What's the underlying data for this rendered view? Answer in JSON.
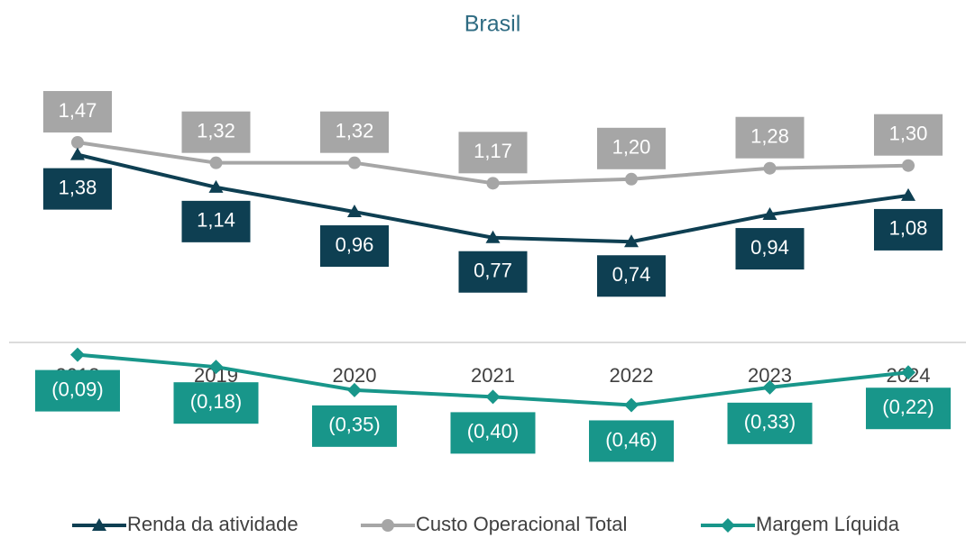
{
  "chart_data": {
    "type": "line",
    "title": "Brasil",
    "categories": [
      "2018",
      "2019",
      "2020",
      "2021",
      "2022",
      "2023",
      "2024"
    ],
    "ylim": [
      -1.0,
      1.6
    ],
    "series": [
      {
        "name": "Renda da atividade",
        "color": "#0e3f52",
        "marker": "triangle",
        "values": [
          1.38,
          1.14,
          0.96,
          0.77,
          0.74,
          0.94,
          1.08
        ],
        "value_labels": [
          "1,38",
          "1,14",
          "0,96",
          "0,77",
          "0,74",
          "0,94",
          "1,08"
        ]
      },
      {
        "name": "Custo Operacional Total",
        "color": "#a6a6a6",
        "marker": "circle",
        "values": [
          1.47,
          1.32,
          1.32,
          1.17,
          1.2,
          1.28,
          1.3
        ],
        "value_labels": [
          "1,47",
          "1,32",
          "1,32",
          "1,17",
          "1,20",
          "1,28",
          "1,30"
        ]
      },
      {
        "name": "Margem Líquida",
        "color": "#18968a",
        "marker": "diamond",
        "values": [
          -0.09,
          -0.18,
          -0.35,
          -0.4,
          -0.46,
          -0.33,
          -0.22
        ],
        "value_labels": [
          "(0,09)",
          "(0,18)",
          "(0,35)",
          "(0,40)",
          "(0,46)",
          "(0,33)",
          "(0,22)"
        ]
      }
    ]
  }
}
